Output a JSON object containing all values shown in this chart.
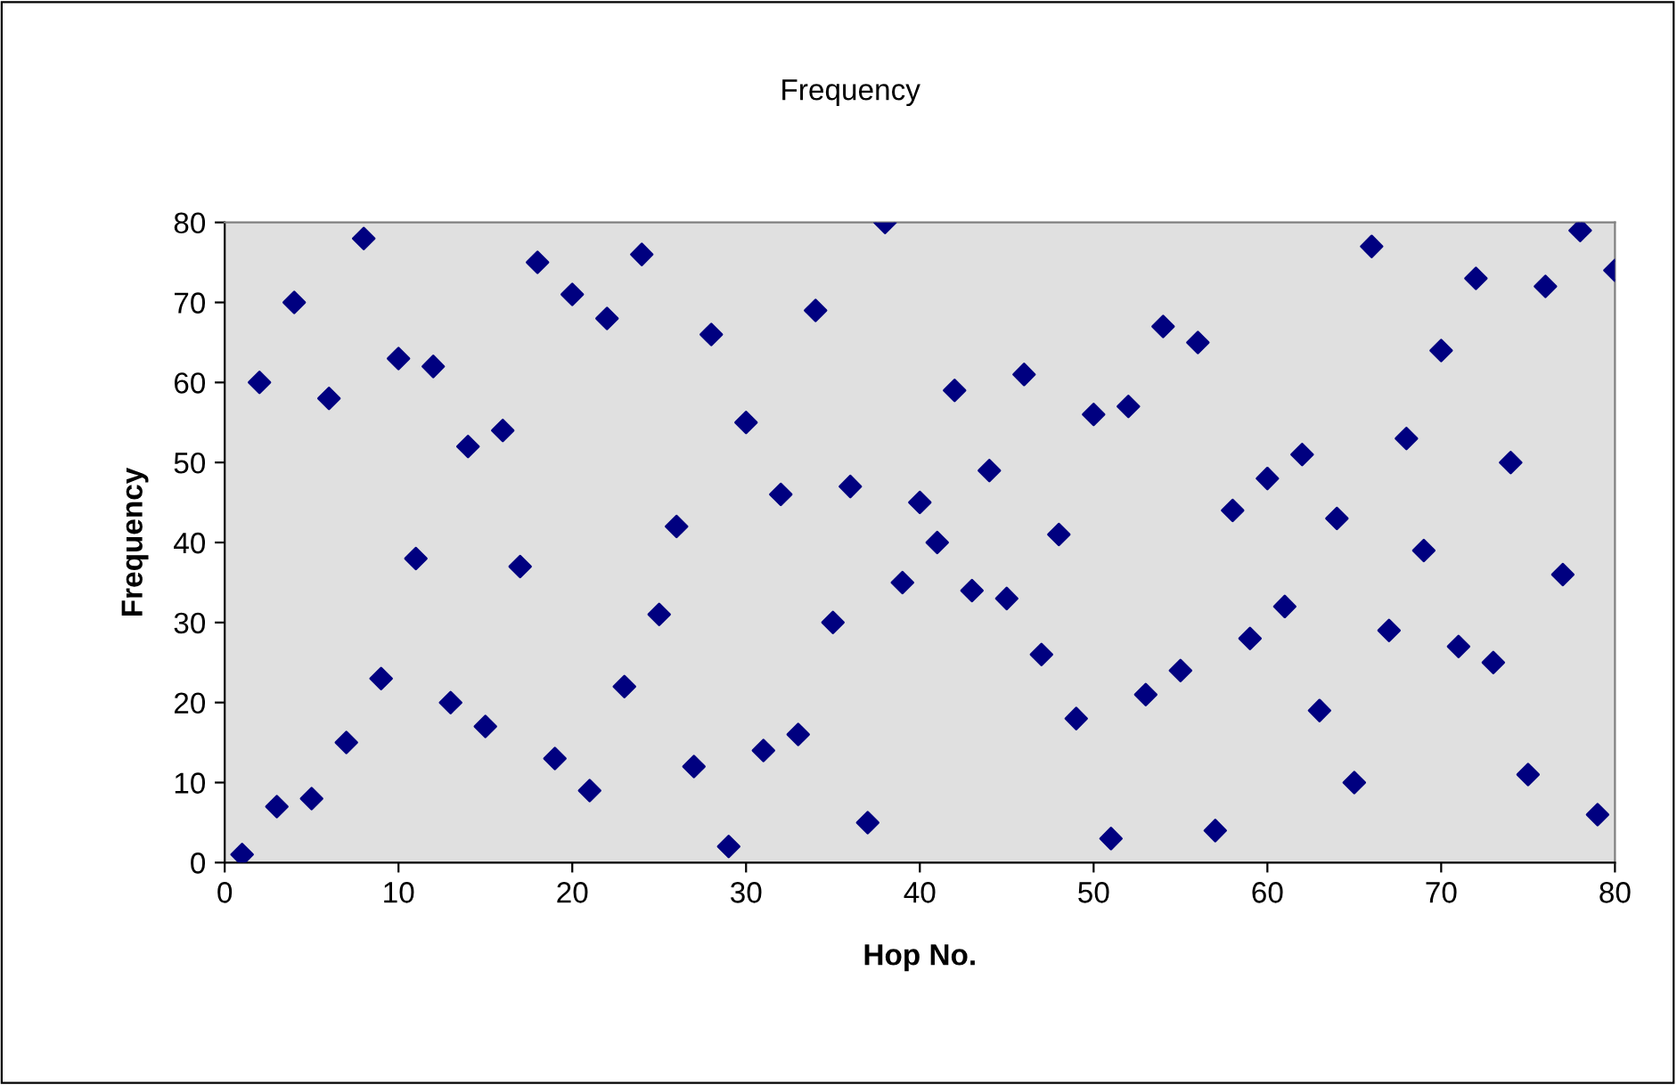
{
  "chart_data": {
    "type": "scatter",
    "title": "Frequency",
    "xlabel": "Hop No.",
    "ylabel": "Frequency",
    "x": [
      1,
      2,
      3,
      4,
      5,
      6,
      7,
      8,
      9,
      10,
      11,
      12,
      13,
      14,
      15,
      16,
      17,
      18,
      19,
      20,
      21,
      22,
      23,
      24,
      25,
      26,
      27,
      28,
      29,
      30,
      31,
      32,
      33,
      34,
      35,
      36,
      37,
      38,
      39,
      40,
      41,
      42,
      43,
      44,
      45,
      46,
      47,
      48,
      49,
      50,
      51,
      52,
      53,
      54,
      55,
      56,
      57,
      58,
      59,
      60,
      61,
      62,
      63,
      64,
      65,
      66,
      67,
      68,
      69,
      70,
      71,
      72,
      73,
      74,
      75,
      76,
      77,
      78,
      79,
      80
    ],
    "series": [
      {
        "color": "#000080",
        "values": [
          1,
          60,
          7,
          70,
          8,
          58,
          15,
          78,
          23,
          63,
          38,
          62,
          20,
          52,
          17,
          54,
          37,
          75,
          13,
          71,
          9,
          68,
          22,
          76,
          31,
          42,
          12,
          66,
          2,
          55,
          14,
          46,
          16,
          69,
          30,
          47,
          5,
          80,
          35,
          45,
          40,
          59,
          34,
          49,
          33,
          61,
          26,
          41,
          18,
          56,
          3,
          57,
          21,
          67,
          24,
          65,
          4,
          44,
          28,
          48,
          32,
          51,
          19,
          43,
          10,
          77,
          29,
          53,
          39,
          64,
          27,
          73,
          25,
          50,
          11,
          72,
          36,
          79,
          6,
          74
        ]
      }
    ],
    "marker": "diamond",
    "grid": false,
    "legend": false,
    "xlim": [
      0,
      80
    ],
    "xticks": [
      0,
      10,
      20,
      30,
      40,
      50,
      60,
      70,
      80
    ],
    "ylim": [
      0,
      80
    ],
    "yticks": [
      0,
      10,
      20,
      30,
      40,
      50,
      60,
      70,
      80
    ]
  }
}
